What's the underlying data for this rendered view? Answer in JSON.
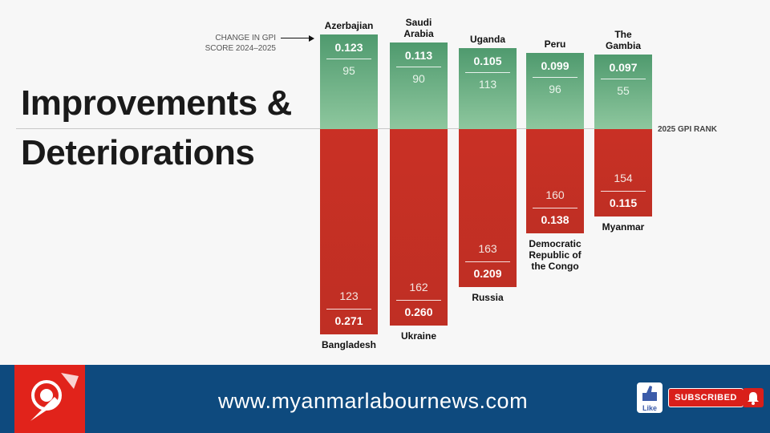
{
  "chart_data": {
    "type": "bar",
    "title_lines": [
      "Improvements &",
      "Deteriorations"
    ],
    "change_label": [
      "CHANGE IN GPI",
      "SCORE 2024–2025"
    ],
    "rank_label": "2025 GPI RANK",
    "improvements": [
      {
        "country": [
          "Azerbajian"
        ],
        "change": "0.123",
        "rank": "95"
      },
      {
        "country": [
          "Saudi",
          "Arabia"
        ],
        "change": "0.113",
        "rank": "90"
      },
      {
        "country": [
          "Uganda"
        ],
        "change": "0.105",
        "rank": "113"
      },
      {
        "country": [
          "Peru"
        ],
        "change": "0.099",
        "rank": "96"
      },
      {
        "country": [
          "The",
          "Gambia"
        ],
        "change": "0.097",
        "rank": "55"
      }
    ],
    "deteriorations": [
      {
        "country": [
          "Bangladesh"
        ],
        "change": "0.271",
        "rank": "123"
      },
      {
        "country": [
          "Ukraine"
        ],
        "change": "0.260",
        "rank": "162"
      },
      {
        "country": [
          "Russia"
        ],
        "change": "0.209",
        "rank": "163"
      },
      {
        "country": [
          "Democratic",
          "Republic of",
          "the Congo"
        ],
        "change": "0.138",
        "rank": "160"
      },
      {
        "country": [
          "Myanmar"
        ],
        "change": "0.115",
        "rank": "154"
      }
    ],
    "colors": {
      "improvement": "#6aae82",
      "deterioration": "#c52f25"
    }
  },
  "footer": {
    "url": "www.myanmarlabournews.com",
    "like_label": "Like",
    "subscribe_label": "SUBSCRIBED"
  },
  "icons": [
    "logo-icon",
    "like-thumb-icon",
    "bell-icon"
  ]
}
